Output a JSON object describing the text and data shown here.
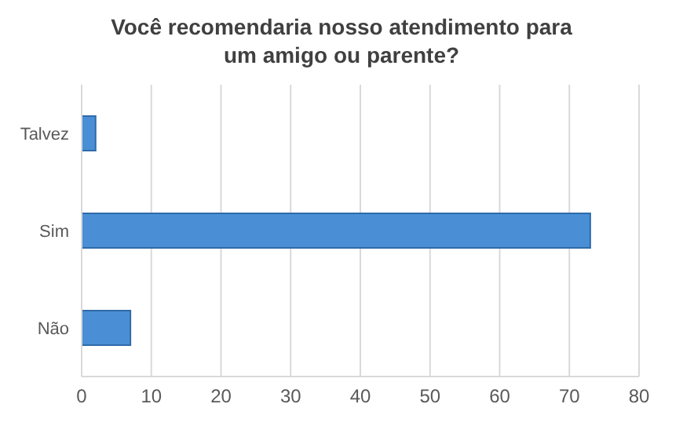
{
  "chart_data": {
    "type": "bar",
    "orientation": "horizontal",
    "title": "Você recomendaria nosso atendimento para um amigo ou parente?",
    "categories": [
      "Talvez",
      "Sim",
      "Não"
    ],
    "values": [
      2,
      73,
      7
    ],
    "color": "#4a8fd6",
    "xlim": [
      0,
      80
    ],
    "xticks": [
      0,
      10,
      20,
      30,
      40,
      50,
      60,
      70,
      80
    ],
    "grid": "x"
  }
}
